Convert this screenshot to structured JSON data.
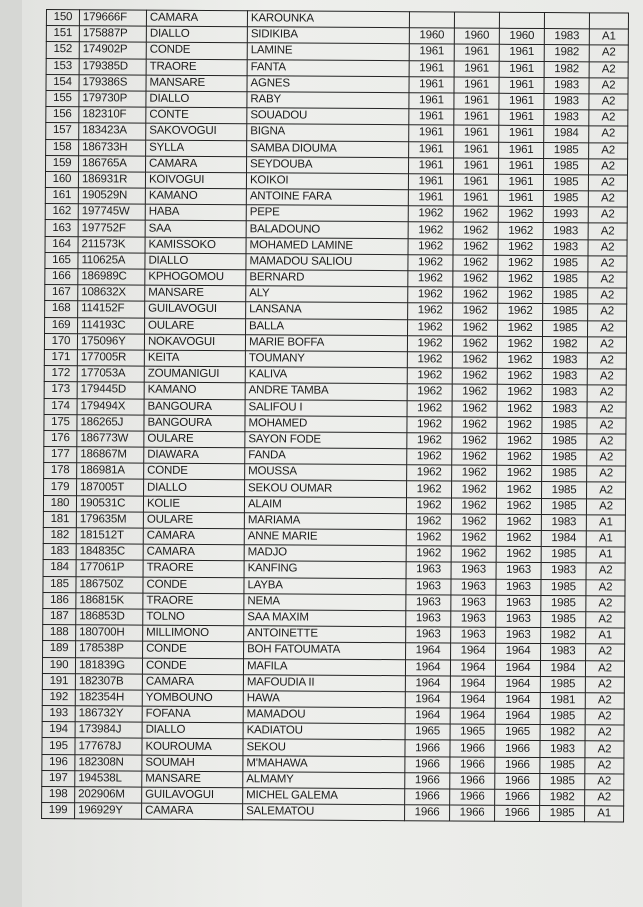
{
  "rows": [
    [
      "150",
      "179666F",
      "CAMARA",
      "KAROUNKA",
      "",
      "",
      "",
      "",
      ""
    ],
    [
      "151",
      "175887P",
      "DIALLO",
      "SIDIKIBA",
      "1960",
      "1960",
      "1960",
      "1983",
      "A1"
    ],
    [
      "152",
      "174902P",
      "CONDE",
      "LAMINE",
      "1961",
      "1961",
      "1961",
      "1982",
      "A2"
    ],
    [
      "153",
      "179385D",
      "TRAORE",
      "FANTA",
      "1961",
      "1961",
      "1961",
      "1982",
      "A2"
    ],
    [
      "154",
      "179386S",
      "MANSARE",
      "AGNES",
      "1961",
      "1961",
      "1961",
      "1983",
      "A2"
    ],
    [
      "155",
      "179730P",
      "DIALLO",
      "RABY",
      "1961",
      "1961",
      "1961",
      "1983",
      "A2"
    ],
    [
      "156",
      "182310F",
      "CONTE",
      "SOUADOU",
      "1961",
      "1961",
      "1961",
      "1983",
      "A2"
    ],
    [
      "157",
      "183423A",
      "SAKOVOGUI",
      "BIGNA",
      "1961",
      "1961",
      "1961",
      "1984",
      "A2"
    ],
    [
      "158",
      "186733H",
      "SYLLA",
      "SAMBA DIOUMA",
      "1961",
      "1961",
      "1961",
      "1985",
      "A2"
    ],
    [
      "159",
      "186765A",
      "CAMARA",
      "SEYDOUBA",
      "1961",
      "1961",
      "1961",
      "1985",
      "A2"
    ],
    [
      "160",
      "186931R",
      "KOIVOGUI",
      "KOIKOI",
      "1961",
      "1961",
      "1961",
      "1985",
      "A2"
    ],
    [
      "161",
      "190529N",
      "KAMANO",
      "ANTOINE FARA",
      "1961",
      "1961",
      "1961",
      "1985",
      "A2"
    ],
    [
      "162",
      "197745W",
      "HABA",
      "PEPE",
      "1962",
      "1962",
      "1962",
      "1993",
      "A2"
    ],
    [
      "163",
      "197752F",
      "SAA",
      "BALADOUNO",
      "1962",
      "1962",
      "1962",
      "1983",
      "A2"
    ],
    [
      "164",
      "211573K",
      "KAMISSOKO",
      "MOHAMED LAMINE",
      "1962",
      "1962",
      "1962",
      "1983",
      "A2"
    ],
    [
      "165",
      "110625A",
      "DIALLO",
      "MAMADOU SALIOU",
      "1962",
      "1962",
      "1962",
      "1985",
      "A2"
    ],
    [
      "166",
      "186989C",
      "KPHOGOMOU",
      "BERNARD",
      "1962",
      "1962",
      "1962",
      "1985",
      "A2"
    ],
    [
      "167",
      "108632X",
      "MANSARE",
      "ALY",
      "1962",
      "1962",
      "1962",
      "1985",
      "A2"
    ],
    [
      "168",
      "114152F",
      "GUILAVOGUI",
      "LANSANA",
      "1962",
      "1962",
      "1962",
      "1985",
      "A2"
    ],
    [
      "169",
      "114193C",
      "OULARE",
      "BALLA",
      "1962",
      "1962",
      "1962",
      "1985",
      "A2"
    ],
    [
      "170",
      "175096Y",
      "NOKAVOGUI",
      "MARIE BOFFA",
      "1962",
      "1962",
      "1962",
      "1982",
      "A2"
    ],
    [
      "171",
      "177005R",
      "KEITA",
      "TOUMANY",
      "1962",
      "1962",
      "1962",
      "1983",
      "A2"
    ],
    [
      "172",
      "177053A",
      "ZOUMANIGUI",
      "KALIVA",
      "1962",
      "1962",
      "1962",
      "1983",
      "A2"
    ],
    [
      "173",
      "179445D",
      "KAMANO",
      "ANDRE TAMBA",
      "1962",
      "1962",
      "1962",
      "1983",
      "A2"
    ],
    [
      "174",
      "179494X",
      "BANGOURA",
      "SALIFOU I",
      "1962",
      "1962",
      "1962",
      "1983",
      "A2"
    ],
    [
      "175",
      "186265J",
      "BANGOURA",
      "MOHAMED",
      "1962",
      "1962",
      "1962",
      "1985",
      "A2"
    ],
    [
      "176",
      "186773W",
      "OULARE",
      "SAYON FODE",
      "1962",
      "1962",
      "1962",
      "1985",
      "A2"
    ],
    [
      "177",
      "186867M",
      "DIAWARA",
      "FANDA",
      "1962",
      "1962",
      "1962",
      "1985",
      "A2"
    ],
    [
      "178",
      "186981A",
      "CONDE",
      "MOUSSA",
      "1962",
      "1962",
      "1962",
      "1985",
      "A2"
    ],
    [
      "179",
      "187005T",
      "DIALLO",
      "SEKOU OUMAR",
      "1962",
      "1962",
      "1962",
      "1985",
      "A2"
    ],
    [
      "180",
      "190531C",
      "KOLIE",
      "ALAIM",
      "1962",
      "1962",
      "1962",
      "1985",
      "A2"
    ],
    [
      "181",
      "179635M",
      "OULARE",
      "MARIAMA",
      "1962",
      "1962",
      "1962",
      "1983",
      "A1"
    ],
    [
      "182",
      "181512T",
      "CAMARA",
      "ANNE MARIE",
      "1962",
      "1962",
      "1962",
      "1984",
      "A1"
    ],
    [
      "183",
      "184835C",
      "CAMARA",
      "MADJO",
      "1962",
      "1962",
      "1962",
      "1985",
      "A1"
    ],
    [
      "184",
      "177061P",
      "TRAORE",
      "KANFING",
      "1963",
      "1963",
      "1963",
      "1983",
      "A2"
    ],
    [
      "185",
      "186750Z",
      "CONDE",
      "LAYBA",
      "1963",
      "1963",
      "1963",
      "1985",
      "A2"
    ],
    [
      "186",
      "186815K",
      "TRAORE",
      "NEMA",
      "1963",
      "1963",
      "1963",
      "1985",
      "A2"
    ],
    [
      "187",
      "186853D",
      "TOLNO",
      "SAA MAXIM",
      "1963",
      "1963",
      "1963",
      "1985",
      "A2"
    ],
    [
      "188",
      "180700H",
      "MILLIMONO",
      "ANTOINETTE",
      "1963",
      "1963",
      "1963",
      "1982",
      "A1"
    ],
    [
      "189",
      "178538P",
      "CONDE",
      "BOH FATOUMATA",
      "1964",
      "1964",
      "1964",
      "1983",
      "A2"
    ],
    [
      "190",
      "181839G",
      "CONDE",
      "MAFILA",
      "1964",
      "1964",
      "1964",
      "1984",
      "A2"
    ],
    [
      "191",
      "182307B",
      "CAMARA",
      "MAFOUDIA II",
      "1964",
      "1964",
      "1964",
      "1985",
      "A2"
    ],
    [
      "192",
      "182354H",
      "YOMBOUNO",
      "HAWA",
      "1964",
      "1964",
      "1964",
      "1981",
      "A2"
    ],
    [
      "193",
      "186732Y",
      "FOFANA",
      "MAMADOU",
      "1964",
      "1964",
      "1964",
      "1985",
      "A2"
    ],
    [
      "194",
      "173984J",
      "DIALLO",
      "KADIATOU",
      "1965",
      "1965",
      "1965",
      "1982",
      "A2"
    ],
    [
      "195",
      "177678J",
      "KOUROUMA",
      "SEKOU",
      "1966",
      "1966",
      "1966",
      "1983",
      "A2"
    ],
    [
      "196",
      "182308N",
      "SOUMAH",
      "M'MAHAWA",
      "1966",
      "1966",
      "1966",
      "1985",
      "A2"
    ],
    [
      "197",
      "194538L",
      "MANSARE",
      "ALMAMY",
      "1966",
      "1966",
      "1966",
      "1985",
      "A2"
    ],
    [
      "198",
      "202906M",
      "GUILAVOGUI",
      "MICHEL GALEMA",
      "1966",
      "1966",
      "1966",
      "1982",
      "A2"
    ],
    [
      "199",
      "196929Y",
      "CAMARA",
      "SALEMATOU",
      "1966",
      "1966",
      "1966",
      "1985",
      "A1"
    ]
  ]
}
